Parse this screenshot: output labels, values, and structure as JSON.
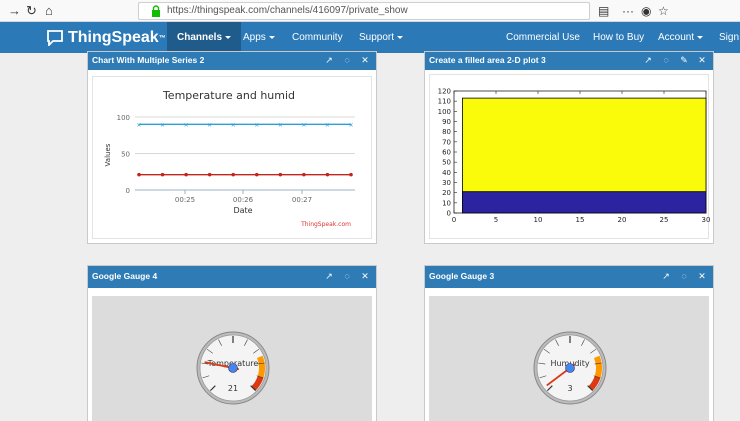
{
  "browser": {
    "url": "https://thingspeak.com/channels/416097/private_show"
  },
  "nav": {
    "brand": "ThingSpeak",
    "brand_tm": "™",
    "items": [
      {
        "label": "Channels",
        "caret": true,
        "active": true
      },
      {
        "label": "Apps",
        "caret": true
      },
      {
        "label": "Community"
      },
      {
        "label": "Support",
        "caret": true
      },
      {
        "label": "Commercial Use"
      },
      {
        "label": "How to Buy"
      },
      {
        "label": "Account",
        "caret": true
      },
      {
        "label": "Sign"
      }
    ]
  },
  "panels": {
    "chart1": {
      "title": "Chart With Multiple Series 2",
      "chart_data": {
        "type": "line",
        "title": "Temperature and humid",
        "xlabel": "Date",
        "ylabel": "Values",
        "x_ticks": [
          "00:25",
          "00:26",
          "00:27"
        ],
        "y_ticks": [
          "0",
          "50",
          "100"
        ],
        "ylim": [
          0,
          100
        ],
        "credit": "ThingSpeak.com",
        "series": [
          {
            "color": "#2d9fd8",
            "values": [
              90,
              90,
              90,
              90,
              90,
              90,
              90,
              90,
              90,
              90
            ]
          },
          {
            "color": "#c2241e",
            "values": [
              21,
              21,
              21,
              21,
              21,
              21,
              21,
              21,
              21,
              21
            ]
          }
        ]
      }
    },
    "chart2": {
      "title": "Create a filled area 2-D plot 3",
      "chart_data": {
        "type": "area",
        "xlim": [
          0,
          30
        ],
        "ylim": [
          0,
          120
        ],
        "x_ticks": [
          "0",
          "5",
          "10",
          "15",
          "20",
          "25",
          "30"
        ],
        "y_ticks": [
          "0",
          "10",
          "20",
          "30",
          "40",
          "50",
          "60",
          "70",
          "80",
          "90",
          "100",
          "110",
          "120"
        ],
        "series": [
          {
            "color": "#2b23a0",
            "x": [
              1,
              30
            ],
            "values": [
              21,
              21
            ]
          },
          {
            "color": "#fafa0b",
            "x": [
              1,
              30
            ],
            "values": [
              113,
              113
            ]
          }
        ]
      }
    },
    "gauge4": {
      "title": "Google Gauge 4",
      "label": "Temperature",
      "value": "21",
      "value_num": 21,
      "max": 100
    },
    "gauge3": {
      "title": "Google Gauge 3",
      "label": "Humudity",
      "value": "3",
      "value_num": 3,
      "max": 100
    }
  },
  "colors": {
    "navbar": "#2b79b7",
    "panel_header": "#2e7bb6"
  }
}
